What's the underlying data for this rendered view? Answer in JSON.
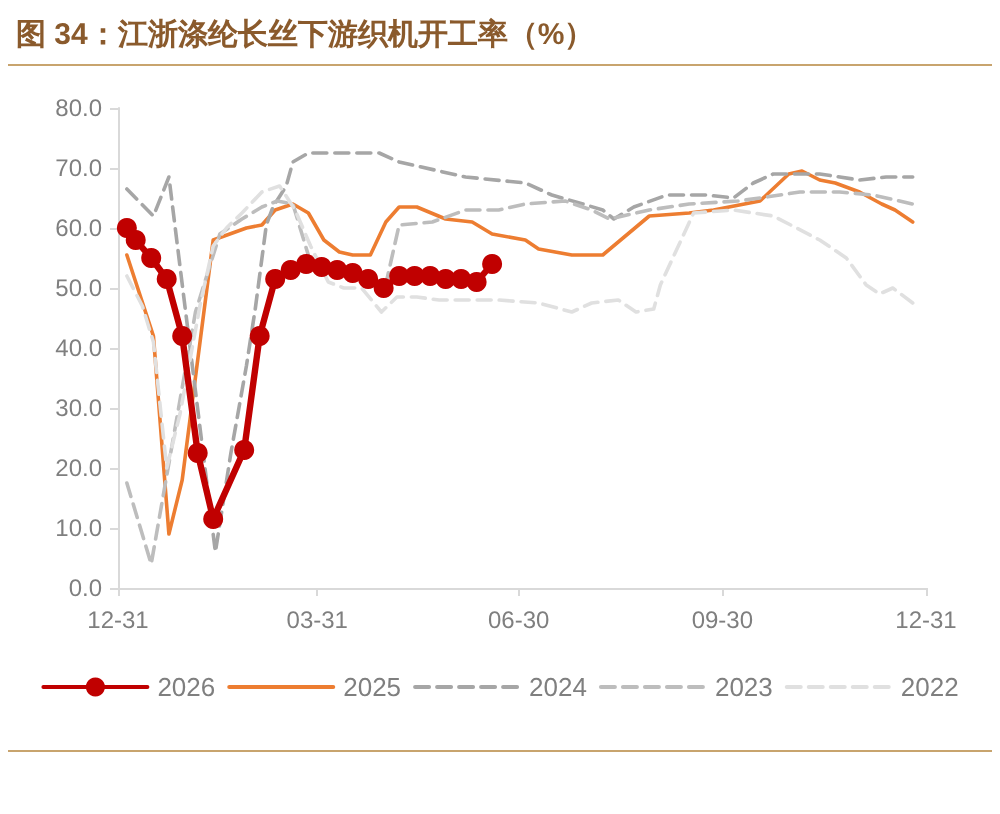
{
  "chart_data": {
    "type": "line",
    "title": "图 34：江浙涤纶长丝下游织机开工率（%）",
    "xlim": [
      "2025-12-31",
      "2026-12-31"
    ],
    "xticks": [
      {
        "value": "2025-12-31",
        "label": "12-31"
      },
      {
        "value": "2026-03-31",
        "label": "03-31"
      },
      {
        "value": "2026-06-30",
        "label": "06-30"
      },
      {
        "value": "2026-09-30",
        "label": "09-30"
      },
      {
        "value": "2026-12-31",
        "label": "12-31"
      }
    ],
    "ylim": [
      0,
      80
    ],
    "yticks": [
      {
        "value": 0,
        "label": "0.0"
      },
      {
        "value": 10,
        "label": "10.0"
      },
      {
        "value": 20,
        "label": "20.0"
      },
      {
        "value": 30,
        "label": "30.0"
      },
      {
        "value": 40,
        "label": "40.0"
      },
      {
        "value": 50,
        "label": "50.0"
      },
      {
        "value": 60,
        "label": "60.0"
      },
      {
        "value": 70,
        "label": "70.0"
      },
      {
        "value": 80,
        "label": "80.0"
      }
    ],
    "legend": "bottom",
    "series": [
      {
        "name": "2026",
        "color": "#c00000",
        "marker": "circle",
        "line_style": "solid",
        "x": [
          "2026-01-04",
          "2026-01-08",
          "2026-01-15",
          "2026-01-22",
          "2026-01-29",
          "2026-02-05",
          "2026-02-12",
          "2026-02-26",
          "2026-03-05",
          "2026-03-12",
          "2026-03-19",
          "2026-03-26",
          "2026-04-02",
          "2026-04-09",
          "2026-04-16",
          "2026-04-23",
          "2026-04-30",
          "2026-05-07",
          "2026-05-14",
          "2026-05-21",
          "2026-05-28",
          "2026-06-04",
          "2026-06-11",
          "2026-06-18"
        ],
        "values": [
          60,
          58,
          55,
          51.5,
          42,
          22.5,
          11.5,
          23,
          42,
          51.5,
          53,
          54,
          53.5,
          53,
          52.5,
          51.5,
          50,
          52,
          52,
          52,
          51.5,
          51.5,
          51,
          54
        ]
      },
      {
        "name": "2025",
        "color": "#ed7d31",
        "line_style": "solid",
        "x": [
          "2026-01-04",
          "2026-01-16",
          "2026-01-23",
          "2026-01-29",
          "2026-02-12",
          "2026-02-27",
          "2026-03-06",
          "2026-03-12",
          "2026-03-20",
          "2026-03-27",
          "2026-04-03",
          "2026-04-10",
          "2026-04-16",
          "2026-04-24",
          "2026-05-01",
          "2026-05-07",
          "2026-05-15",
          "2026-05-28",
          "2026-06-09",
          "2026-06-18",
          "2026-07-03",
          "2026-07-09",
          "2026-07-24",
          "2026-08-07",
          "2026-08-28",
          "2026-09-15",
          "2026-09-26",
          "2026-10-17",
          "2026-10-30",
          "2026-11-05",
          "2026-11-13",
          "2026-11-20",
          "2026-12-01",
          "2026-12-11",
          "2026-12-17",
          "2026-12-25"
        ],
        "values": [
          55.5,
          42,
          9,
          18,
          58,
          60,
          60.5,
          63,
          64,
          62.5,
          58,
          56,
          55.5,
          55.5,
          61,
          63.5,
          63.5,
          61.5,
          61,
          59,
          58,
          56.5,
          55.5,
          55.5,
          62,
          62.5,
          63,
          64.5,
          69,
          69.5,
          68,
          67.5,
          66,
          64,
          63,
          61
        ]
      },
      {
        "name": "2024",
        "color": "#a6a6a6",
        "line_style": "dashed",
        "x": [
          "2026-01-04",
          "2026-01-16",
          "2026-01-23",
          "2026-02-13",
          "2026-02-20",
          "2026-02-27",
          "2026-03-03",
          "2026-03-08",
          "2026-03-11",
          "2026-03-17",
          "2026-03-20",
          "2026-03-27",
          "2026-04-28",
          "2026-05-07",
          "2026-06-06",
          "2026-07-03",
          "2026-07-15",
          "2026-07-29",
          "2026-08-07",
          "2026-08-12",
          "2026-08-21",
          "2026-09-05",
          "2026-09-23",
          "2026-10-05",
          "2026-10-14",
          "2026-10-23",
          "2026-11-13",
          "2026-12-01",
          "2026-12-13",
          "2026-12-25"
        ],
        "values": [
          66.5,
          62,
          68.5,
          6,
          22.5,
          37,
          46.5,
          60.5,
          63.5,
          67,
          71,
          72.5,
          72.5,
          71,
          68.5,
          67.5,
          65.5,
          64,
          63,
          61.5,
          63.5,
          65.5,
          65.5,
          65,
          67.5,
          69,
          69,
          68,
          68.5,
          68.5
        ]
      },
      {
        "name": "2023",
        "color": "#bdbdbd",
        "line_style": "dashed",
        "x": [
          "2026-01-04",
          "2026-01-15",
          "2026-01-25",
          "2026-02-04",
          "2026-02-15",
          "2026-02-25",
          "2026-03-06",
          "2026-03-13",
          "2026-03-20",
          "2026-03-29",
          "2026-04-19",
          "2026-04-30",
          "2026-05-07",
          "2026-05-22",
          "2026-06-06",
          "2026-06-21",
          "2026-07-03",
          "2026-07-21",
          "2026-08-02",
          "2026-08-10",
          "2026-08-28",
          "2026-09-15",
          "2026-10-07",
          "2026-10-17",
          "2026-11-04",
          "2026-11-22",
          "2026-12-07",
          "2026-12-25"
        ],
        "values": [
          17.5,
          4,
          25,
          46,
          59,
          61.5,
          63.5,
          64.5,
          64,
          53,
          52.5,
          49,
          60.5,
          61,
          63,
          63,
          64,
          64.5,
          63,
          61.5,
          63,
          64,
          64.5,
          65,
          66,
          66,
          65.5,
          64
        ]
      },
      {
        "name": "2022",
        "color": "#e0e0e0",
        "line_style": "dashed",
        "x": [
          "2026-01-04",
          "2026-01-11",
          "2026-01-16",
          "2026-01-22",
          "2026-01-28",
          "2026-02-01",
          "2026-02-06",
          "2026-02-12",
          "2026-02-18",
          "2026-02-25",
          "2026-03-06",
          "2026-03-14",
          "2026-03-21",
          "2026-03-28",
          "2026-04-05",
          "2026-04-12",
          "2026-04-20",
          "2026-04-29",
          "2026-05-06",
          "2026-05-15",
          "2026-05-25",
          "2026-06-03",
          "2026-06-21",
          "2026-07-09",
          "2026-07-24",
          "2026-08-02",
          "2026-08-14",
          "2026-08-22",
          "2026-08-30",
          "2026-09-02",
          "2026-09-17",
          "2026-10-05",
          "2026-10-23",
          "2026-11-13",
          "2026-11-25",
          "2026-12-04",
          "2026-12-10",
          "2026-12-16",
          "2026-12-25"
        ],
        "values": [
          52,
          47,
          41,
          20,
          29,
          37,
          47,
          57,
          60,
          62.5,
          66,
          67,
          63,
          57,
          51,
          50,
          50,
          46,
          48.5,
          48.5,
          48,
          48,
          48,
          47.5,
          46,
          47.5,
          48,
          46,
          46.5,
          50.5,
          62.5,
          63,
          62,
          58,
          55,
          50.5,
          49,
          50,
          47.5
        ]
      }
    ]
  }
}
